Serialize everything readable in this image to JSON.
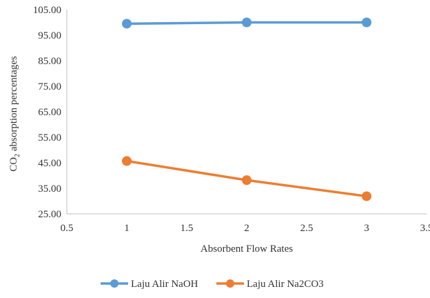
{
  "chart_data": {
    "type": "scatter",
    "title": "",
    "xlabel": "Absorbent Flow Rates",
    "ylabel": "CO2 absorption percentages",
    "ylabel_parts": {
      "main": "CO",
      "subscript": "2",
      "rest": " absorption percentages"
    },
    "xlim": [
      0.5,
      3.5
    ],
    "ylim": [
      25,
      105
    ],
    "x_ticks": [
      0.5,
      1,
      1.5,
      2,
      2.5,
      3,
      3.5
    ],
    "x_tick_labels": [
      "0.5",
      "1",
      "1.5",
      "2",
      "2.5",
      "3",
      "3.5"
    ],
    "y_ticks": [
      25,
      35,
      45,
      55,
      65,
      75,
      85,
      95,
      105
    ],
    "y_tick_labels": [
      "25.00",
      "35.00",
      "45.00",
      "55.00",
      "65.00",
      "75.00",
      "85.00",
      "95.00",
      "105.00"
    ],
    "grid": false,
    "legend_position": "bottom",
    "series": [
      {
        "name": "Laju Alir NaOH",
        "color": "#5B9BD5",
        "x": [
          1,
          2,
          3
        ],
        "y": [
          99.5,
          100.0,
          100.0
        ]
      },
      {
        "name": "Laju Alir Na2CO3",
        "color": "#ED7D31",
        "x": [
          1,
          2,
          3
        ],
        "y": [
          45.7,
          38.2,
          31.9
        ]
      }
    ]
  }
}
